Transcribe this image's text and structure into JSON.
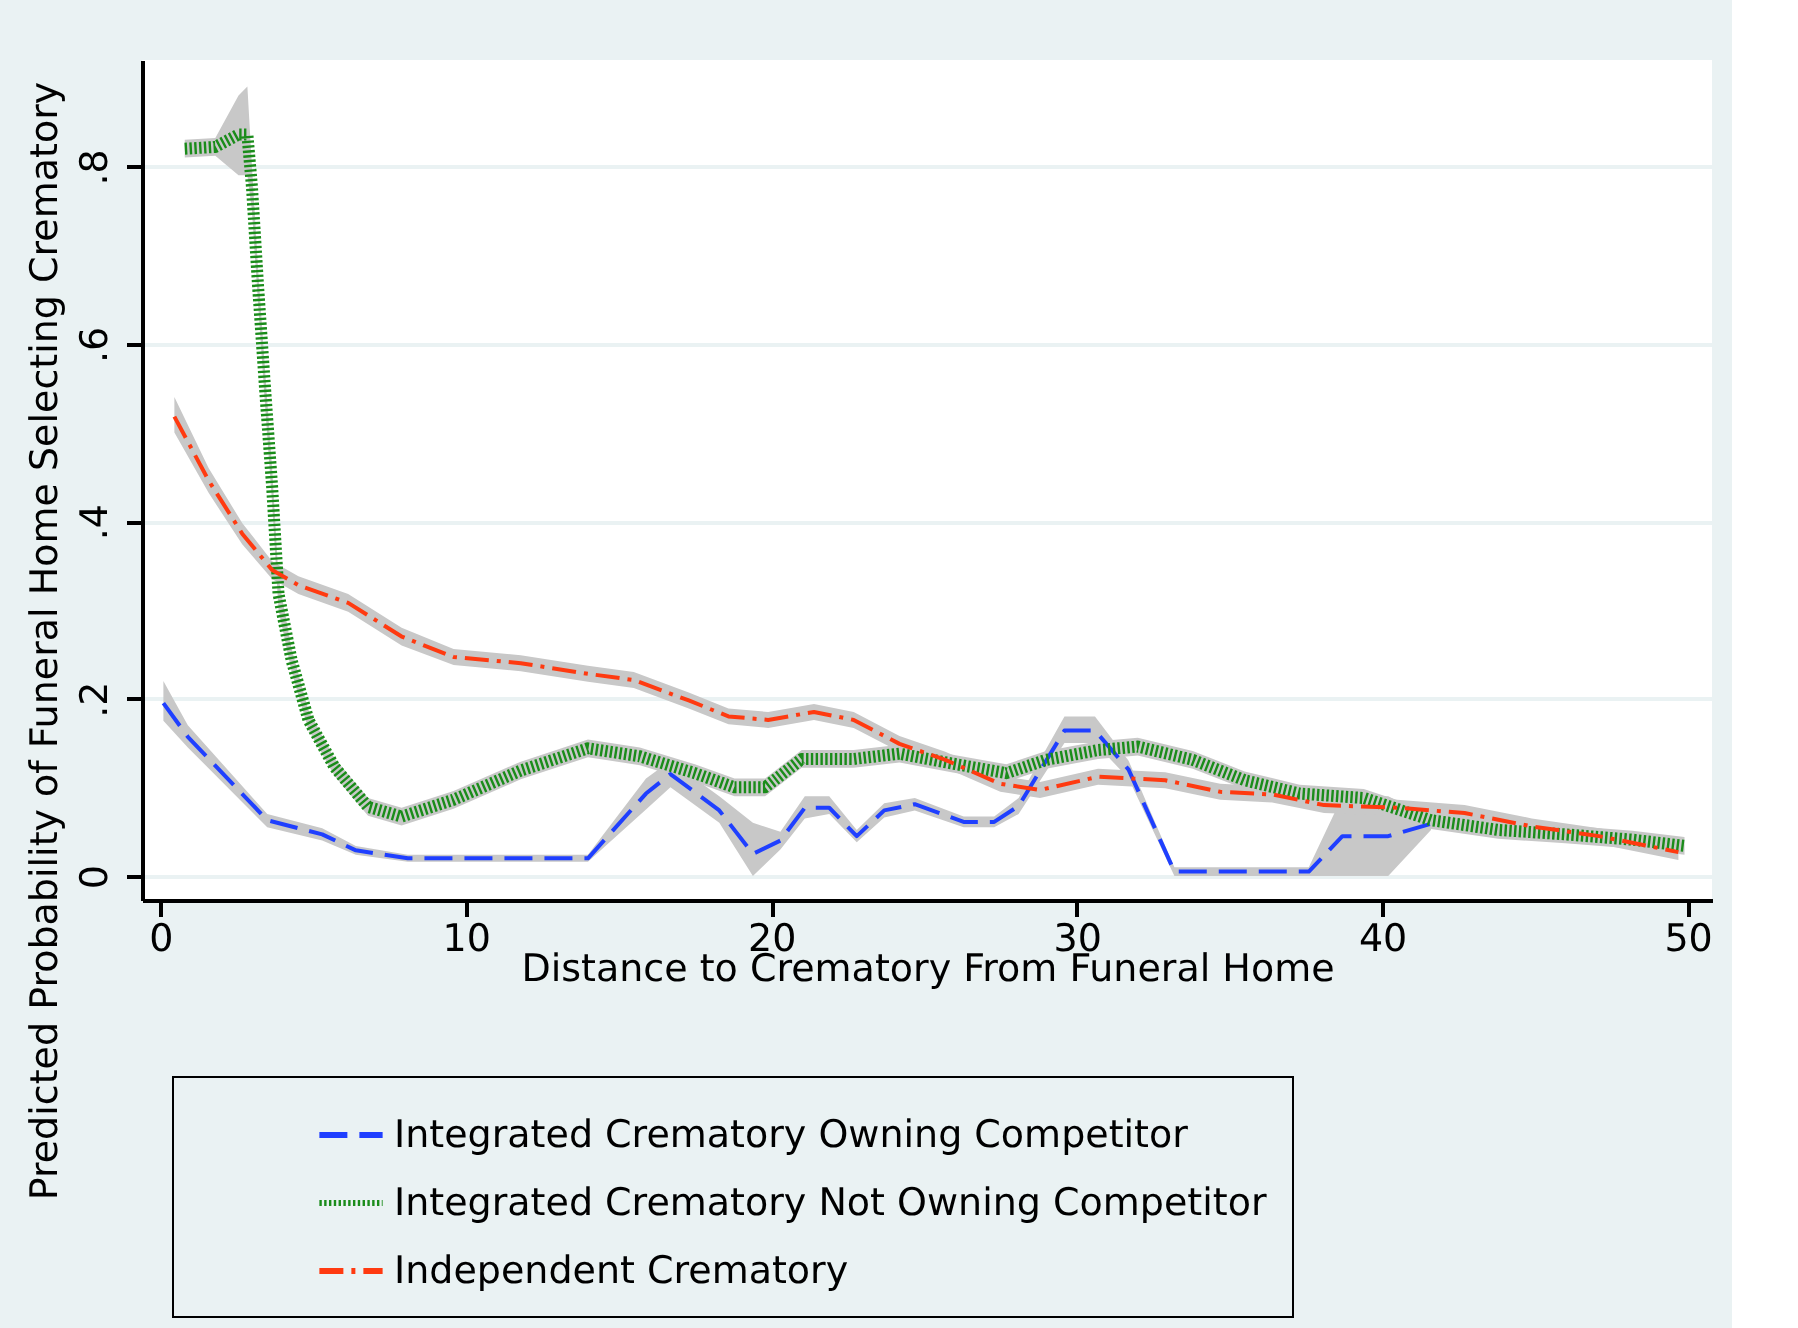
{
  "chart_data": {
    "type": "line",
    "xlabel": "Distance to Crematory From Funeral Home",
    "ylabel": "Predicted Probability of Funeral Home Selecting Crematory",
    "xlim": [
      -0.6,
      50.8
    ],
    "ylim": [
      -0.027,
      0.92
    ],
    "xticks": [
      0,
      10,
      20,
      30,
      40,
      50
    ],
    "yticks": [
      {
        "value": 0,
        "label": "0"
      },
      {
        "value": 0.2,
        "label": ".2"
      },
      {
        "value": 0.4,
        "label": ".4"
      },
      {
        "value": 0.6,
        "label": ".6"
      },
      {
        "value": 0.8,
        "label": ".8"
      }
    ],
    "grid": "y",
    "legend": "bottom",
    "marker": "none",
    "series": [
      {
        "name": "Integrated Crematory Owning Competitor",
        "color": "#1f3fff",
        "line_style": "dashed",
        "x": [
          0.1,
          0.9,
          3.5,
          5.3,
          6.4,
          8.1,
          14.0,
          15.9,
          16.7,
          18.3,
          19.4,
          20.3,
          21.1,
          21.9,
          22.8,
          23.7,
          24.7,
          26.3,
          27.3,
          28.1,
          29.6,
          30.6,
          31.7,
          33.2,
          37.6,
          38.7,
          40.2,
          41.6
        ],
        "values": [
          0.195,
          0.157,
          0.063,
          0.047,
          0.029,
          0.02,
          0.02,
          0.093,
          0.115,
          0.074,
          0.025,
          0.04,
          0.077,
          0.077,
          0.045,
          0.074,
          0.081,
          0.061,
          0.061,
          0.079,
          0.164,
          0.164,
          0.12,
          0.005,
          0.005,
          0.045,
          0.045,
          0.059
        ],
        "lower": [
          0.175,
          0.145,
          0.055,
          0.04,
          0.024,
          0.016,
          0.016,
          0.075,
          0.1,
          0.06,
          0.0,
          0.03,
          0.065,
          0.07,
          0.038,
          0.066,
          0.074,
          0.055,
          0.055,
          0.07,
          0.15,
          0.15,
          0.11,
          0.0,
          0.0,
          0.0,
          0.0,
          0.052
        ],
        "upper": [
          0.22,
          0.17,
          0.07,
          0.054,
          0.034,
          0.024,
          0.024,
          0.11,
          0.13,
          0.09,
          0.06,
          0.05,
          0.09,
          0.09,
          0.052,
          0.082,
          0.088,
          0.067,
          0.067,
          0.088,
          0.18,
          0.18,
          0.13,
          0.01,
          0.01,
          0.09,
          0.09,
          0.066
        ]
      },
      {
        "name": "Integrated Crematory Not Owning Competitor",
        "color": "#1a8c1a",
        "line_style": "dotted",
        "x": [
          0.8,
          1.8,
          2.56,
          2.85,
          3.0,
          3.2,
          3.44,
          3.66,
          3.87,
          4.3,
          4.85,
          5.7,
          6.8,
          7.9,
          9.6,
          11.8,
          14.0,
          15.7,
          17.5,
          18.8,
          19.8,
          21.0,
          22.7,
          24.2,
          25.9,
          27.7,
          29.0,
          30.7,
          32.0,
          33.8,
          35.5,
          37.3,
          39.4,
          41.6,
          43.8,
          46.0,
          48.2,
          49.9
        ],
        "values": [
          0.82,
          0.822,
          0.836,
          0.836,
          0.777,
          0.665,
          0.544,
          0.439,
          0.318,
          0.243,
          0.176,
          0.123,
          0.078,
          0.067,
          0.086,
          0.119,
          0.144,
          0.135,
          0.116,
          0.1,
          0.1,
          0.132,
          0.132,
          0.138,
          0.127,
          0.116,
          0.131,
          0.142,
          0.146,
          0.131,
          0.108,
          0.093,
          0.088,
          0.063,
          0.052,
          0.047,
          0.041,
          0.034
        ],
        "lower": [
          0.81,
          0.812,
          0.79,
          0.79,
          0.75,
          0.645,
          0.525,
          0.42,
          0.3,
          0.23,
          0.165,
          0.113,
          0.068,
          0.057,
          0.076,
          0.109,
          0.134,
          0.125,
          0.106,
          0.09,
          0.09,
          0.122,
          0.122,
          0.128,
          0.117,
          0.106,
          0.121,
          0.132,
          0.136,
          0.121,
          0.098,
          0.083,
          0.078,
          0.053,
          0.042,
          0.037,
          0.031,
          0.024
        ],
        "upper": [
          0.83,
          0.832,
          0.88,
          0.89,
          0.8,
          0.685,
          0.565,
          0.46,
          0.336,
          0.256,
          0.187,
          0.133,
          0.088,
          0.077,
          0.096,
          0.129,
          0.154,
          0.145,
          0.126,
          0.11,
          0.11,
          0.142,
          0.142,
          0.148,
          0.137,
          0.126,
          0.141,
          0.152,
          0.156,
          0.141,
          0.118,
          0.103,
          0.098,
          0.073,
          0.062,
          0.057,
          0.051,
          0.044
        ]
      },
      {
        "name": "Independent Crematory",
        "color": "#ff3a10",
        "line_style": "dashdot",
        "x": [
          0.46,
          1.58,
          2.68,
          3.66,
          4.52,
          6.15,
          7.9,
          9.6,
          11.8,
          14.0,
          15.5,
          17.3,
          18.6,
          19.9,
          21.4,
          22.7,
          24.2,
          25.7,
          27.5,
          28.8,
          30.7,
          32.9,
          34.7,
          36.4,
          38.1,
          40.5,
          42.7,
          44.9,
          47.1,
          49.7
        ],
        "values": [
          0.518,
          0.446,
          0.386,
          0.345,
          0.328,
          0.308,
          0.27,
          0.247,
          0.24,
          0.228,
          0.221,
          0.198,
          0.18,
          0.176,
          0.185,
          0.176,
          0.149,
          0.131,
          0.104,
          0.097,
          0.112,
          0.108,
          0.095,
          0.092,
          0.08,
          0.077,
          0.071,
          0.056,
          0.045,
          0.027
        ],
        "lower": [
          0.5,
          0.432,
          0.374,
          0.335,
          0.318,
          0.298,
          0.26,
          0.238,
          0.231,
          0.219,
          0.212,
          0.189,
          0.171,
          0.167,
          0.176,
          0.167,
          0.14,
          0.122,
          0.095,
          0.088,
          0.103,
          0.099,
          0.086,
          0.083,
          0.071,
          0.068,
          0.062,
          0.047,
          0.036,
          0.018
        ],
        "upper": [
          0.54,
          0.46,
          0.398,
          0.355,
          0.338,
          0.318,
          0.28,
          0.256,
          0.249,
          0.237,
          0.23,
          0.207,
          0.189,
          0.185,
          0.194,
          0.185,
          0.158,
          0.14,
          0.113,
          0.106,
          0.121,
          0.117,
          0.104,
          0.101,
          0.089,
          0.086,
          0.08,
          0.065,
          0.054,
          0.036
        ]
      }
    ]
  }
}
